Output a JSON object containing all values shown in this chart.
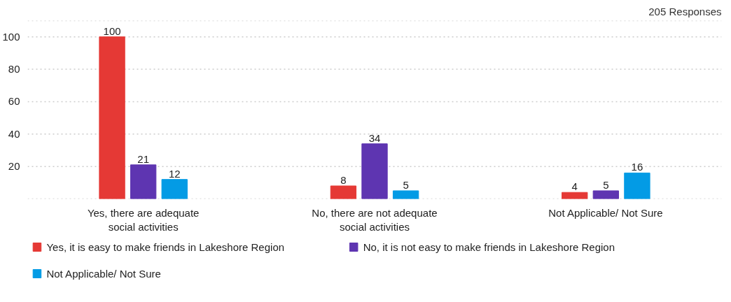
{
  "chart_data": {
    "type": "bar",
    "title": "205 Responses",
    "categories": [
      "Yes, there are adequate social activities",
      "No, there are not adequate social activities",
      "Not Applicable/ Not Sure"
    ],
    "series": [
      {
        "name": "Yes, it is easy to make friends in Lakeshore Region",
        "color": "#e53935",
        "values": [
          100,
          8,
          4
        ]
      },
      {
        "name": "No, it is not easy to make friends in Lakeshore Region",
        "color": "#5e35b1",
        "values": [
          21,
          34,
          5
        ]
      },
      {
        "name": "Not Applicable/ Not Sure",
        "color": "#039be5",
        "values": [
          12,
          5,
          16
        ]
      }
    ],
    "ylim": [
      0,
      110
    ],
    "yticks": [
      {
        "value": 0,
        "label": null
      },
      20,
      40,
      60,
      80,
      100,
      {
        "value": 110,
        "label": null
      }
    ],
    "grid": "y",
    "legend": "bottom",
    "data_labels": true
  }
}
